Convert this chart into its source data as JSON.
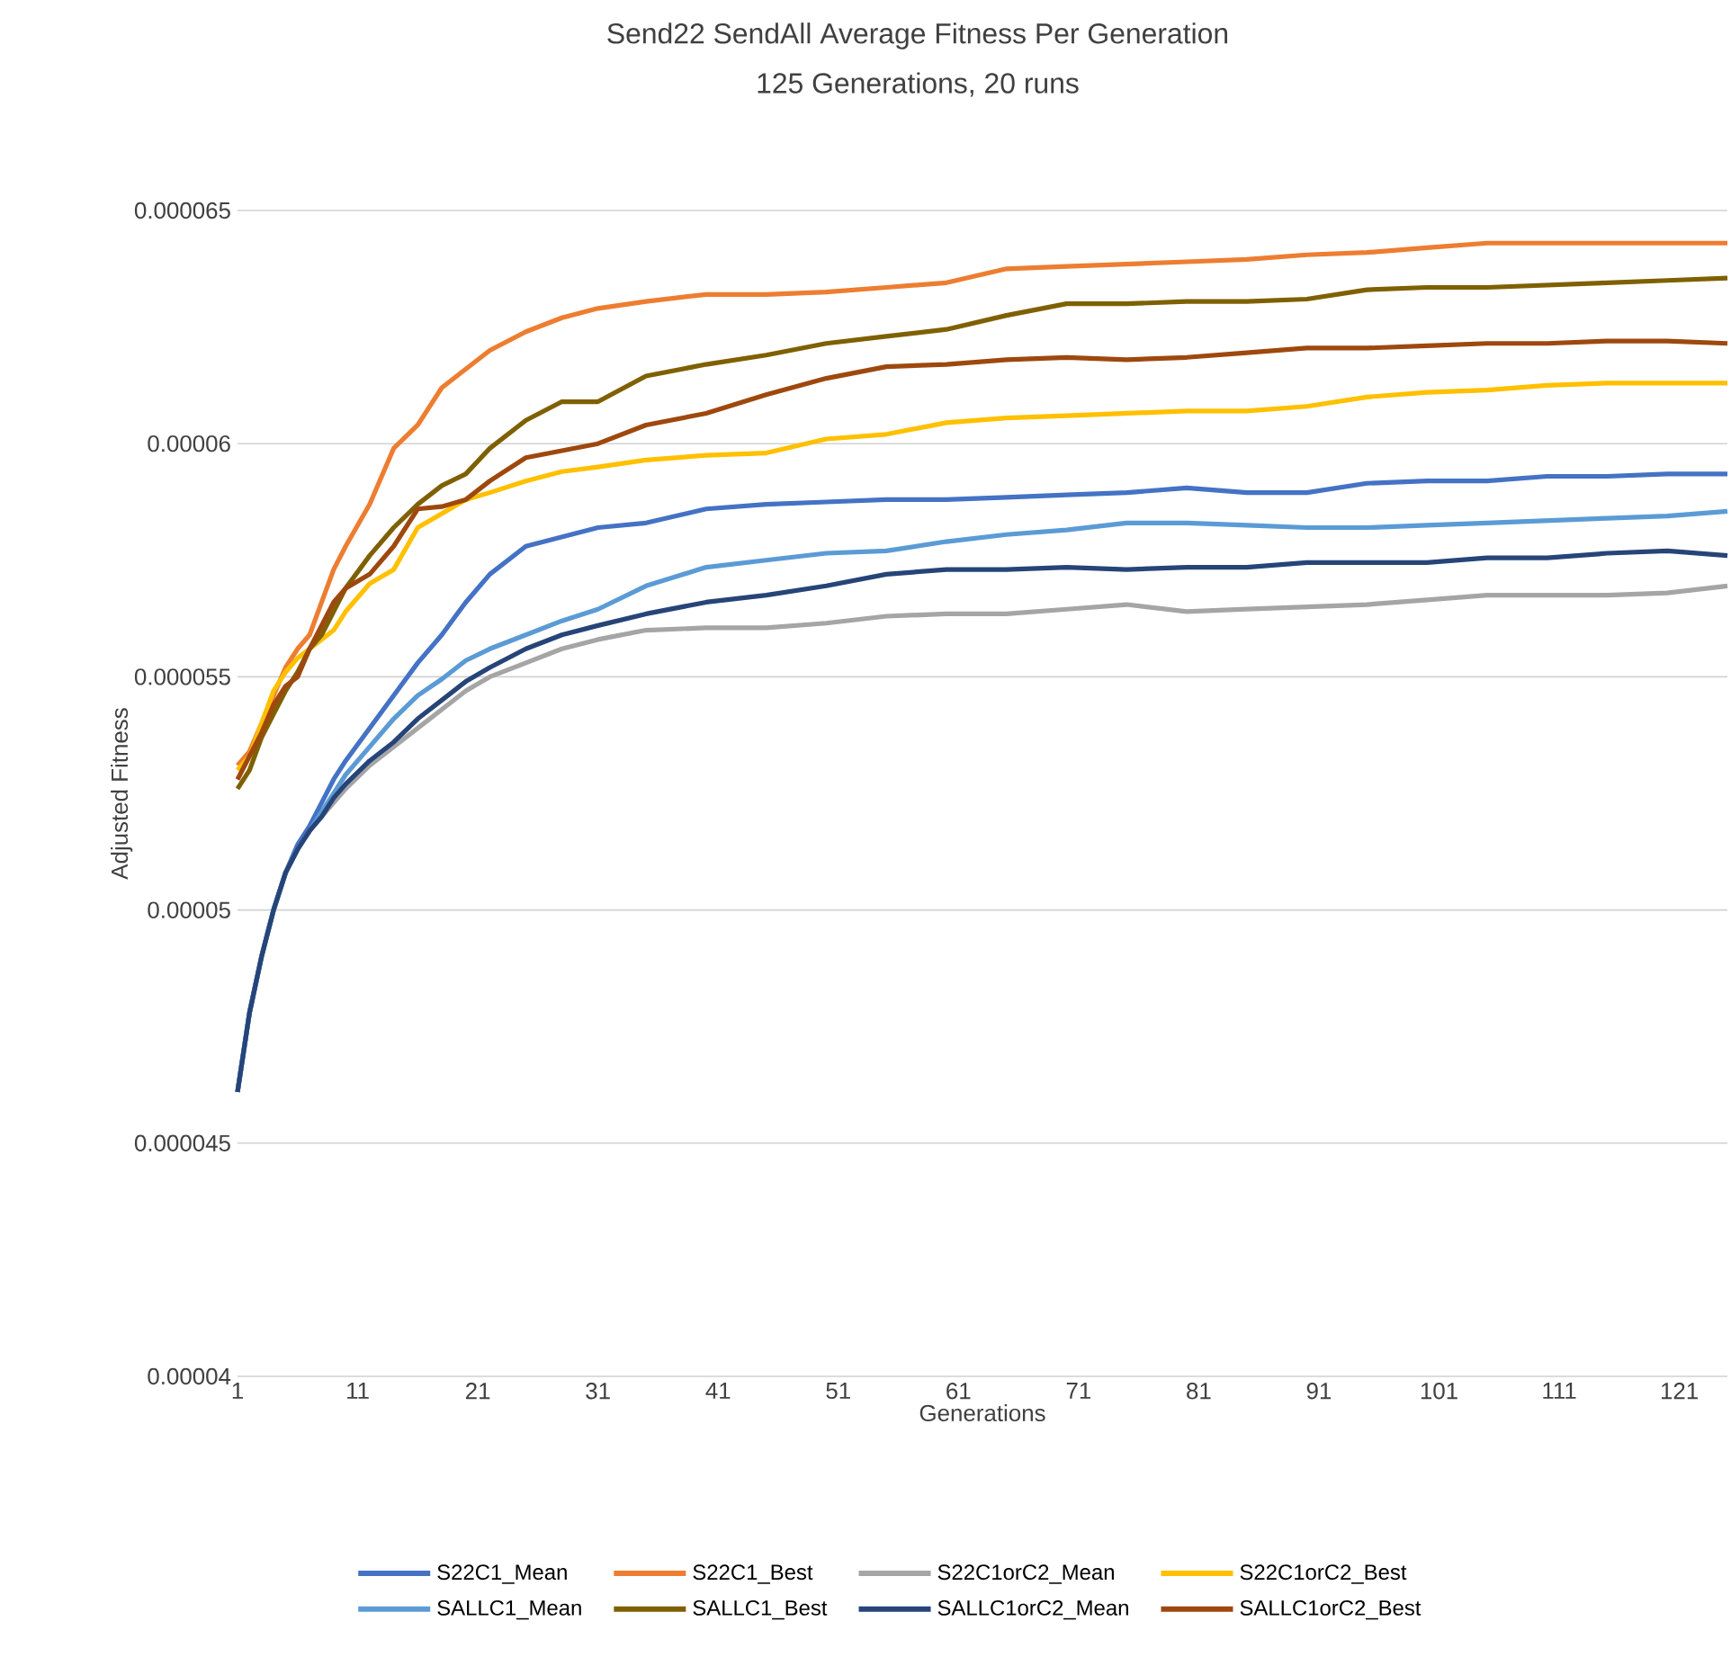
{
  "chart_data": {
    "type": "line",
    "title": "Send22 SendAll Average Fitness Per Generation",
    "subtitle": "125 Generations, 20 runs",
    "xlabel": "Generations",
    "ylabel": "Adjusted Fitness",
    "x": [
      1,
      2,
      3,
      4,
      5,
      6,
      7,
      8,
      9,
      10,
      12,
      14,
      16,
      18,
      20,
      22,
      25,
      28,
      31,
      35,
      40,
      45,
      50,
      55,
      60,
      65,
      70,
      75,
      80,
      85,
      90,
      95,
      100,
      105,
      110,
      115,
      120,
      125
    ],
    "xlim": [
      1,
      125
    ],
    "xticks": [
      1,
      11,
      21,
      31,
      41,
      51,
      61,
      71,
      81,
      91,
      101,
      111,
      121
    ],
    "ylim": [
      4e-05,
      6.5e-05
    ],
    "yticks": [
      {
        "value": 4e-05,
        "label": "0.00004"
      },
      {
        "value": 4.5e-05,
        "label": "0.000045"
      },
      {
        "value": 5e-05,
        "label": "0.00005"
      },
      {
        "value": 5.5e-05,
        "label": "0.000055"
      },
      {
        "value": 6e-05,
        "label": "0.00006"
      },
      {
        "value": 6.5e-05,
        "label": "0.000065"
      }
    ],
    "grid": "y",
    "legend": "bottom",
    "series": [
      {
        "name": "S22C1_Mean",
        "color": "#4472c4",
        "values": [
          4.61e-05,
          4.78e-05,
          4.9e-05,
          5e-05,
          5.08e-05,
          5.14e-05,
          5.18e-05,
          5.23e-05,
          5.28e-05,
          5.32e-05,
          5.39e-05,
          5.46e-05,
          5.53e-05,
          5.59e-05,
          5.66e-05,
          5.72e-05,
          5.78e-05,
          5.8e-05,
          5.82e-05,
          5.83e-05,
          5.86e-05,
          5.87e-05,
          5.875e-05,
          5.88e-05,
          5.88e-05,
          5.885e-05,
          5.89e-05,
          5.895e-05,
          5.905e-05,
          5.895e-05,
          5.895e-05,
          5.915e-05,
          5.92e-05,
          5.92e-05,
          5.93e-05,
          5.93e-05,
          5.935e-05,
          5.935e-05
        ]
      },
      {
        "name": "S22C1_Best",
        "color": "#ed7d31",
        "values": [
          5.31e-05,
          5.34e-05,
          5.4e-05,
          5.46e-05,
          5.52e-05,
          5.56e-05,
          5.59e-05,
          5.66e-05,
          5.73e-05,
          5.78e-05,
          5.87e-05,
          5.99e-05,
          6.04e-05,
          6.12e-05,
          6.16e-05,
          6.2e-05,
          6.24e-05,
          6.27e-05,
          6.29e-05,
          6.305e-05,
          6.32e-05,
          6.32e-05,
          6.325e-05,
          6.335e-05,
          6.345e-05,
          6.375e-05,
          6.38e-05,
          6.385e-05,
          6.39e-05,
          6.395e-05,
          6.405e-05,
          6.41e-05,
          6.42e-05,
          6.43e-05,
          6.43e-05,
          6.43e-05,
          6.43e-05,
          6.43e-05
        ]
      },
      {
        "name": "S22C1orC2_Mean",
        "color": "#a5a5a5",
        "values": [
          4.61e-05,
          4.78e-05,
          4.9e-05,
          5e-05,
          5.08e-05,
          5.13e-05,
          5.17e-05,
          5.2e-05,
          5.23e-05,
          5.26e-05,
          5.31e-05,
          5.35e-05,
          5.39e-05,
          5.43e-05,
          5.47e-05,
          5.5e-05,
          5.53e-05,
          5.56e-05,
          5.58e-05,
          5.6e-05,
          5.605e-05,
          5.605e-05,
          5.615e-05,
          5.63e-05,
          5.635e-05,
          5.635e-05,
          5.645e-05,
          5.655e-05,
          5.64e-05,
          5.645e-05,
          5.65e-05,
          5.655e-05,
          5.665e-05,
          5.675e-05,
          5.675e-05,
          5.675e-05,
          5.68e-05,
          5.695e-05
        ]
      },
      {
        "name": "S22C1orC2_Best",
        "color": "#ffc000",
        "values": [
          5.3e-05,
          5.33e-05,
          5.4e-05,
          5.47e-05,
          5.51e-05,
          5.54e-05,
          5.56e-05,
          5.58e-05,
          5.6e-05,
          5.64e-05,
          5.7e-05,
          5.73e-05,
          5.82e-05,
          5.85e-05,
          5.88e-05,
          5.895e-05,
          5.92e-05,
          5.94e-05,
          5.95e-05,
          5.965e-05,
          5.975e-05,
          5.98e-05,
          6.01e-05,
          6.02e-05,
          6.045e-05,
          6.055e-05,
          6.06e-05,
          6.065e-05,
          6.07e-05,
          6.07e-05,
          6.08e-05,
          6.1e-05,
          6.11e-05,
          6.115e-05,
          6.125e-05,
          6.13e-05,
          6.13e-05,
          6.13e-05
        ]
      },
      {
        "name": "SALLC1_Mean",
        "color": "#5b9bd5",
        "values": [
          4.61e-05,
          4.78e-05,
          4.9e-05,
          5e-05,
          5.08e-05,
          5.13e-05,
          5.17e-05,
          5.21e-05,
          5.25e-05,
          5.29e-05,
          5.35e-05,
          5.41e-05,
          5.46e-05,
          5.495e-05,
          5.535e-05,
          5.56e-05,
          5.59e-05,
          5.62e-05,
          5.645e-05,
          5.695e-05,
          5.735e-05,
          5.75e-05,
          5.765e-05,
          5.77e-05,
          5.79e-05,
          5.805e-05,
          5.815e-05,
          5.83e-05,
          5.83e-05,
          5.825e-05,
          5.82e-05,
          5.82e-05,
          5.825e-05,
          5.83e-05,
          5.835e-05,
          5.84e-05,
          5.845e-05,
          5.855e-05
        ]
      },
      {
        "name": "SALLC1_Best",
        "color": "#7f6000",
        "values": [
          5.26e-05,
          5.3e-05,
          5.37e-05,
          5.42e-05,
          5.47e-05,
          5.51e-05,
          5.56e-05,
          5.59e-05,
          5.64e-05,
          5.69e-05,
          5.76e-05,
          5.82e-05,
          5.87e-05,
          5.91e-05,
          5.935e-05,
          5.99e-05,
          6.05e-05,
          6.09e-05,
          6.09e-05,
          6.145e-05,
          6.17e-05,
          6.19e-05,
          6.215e-05,
          6.23e-05,
          6.245e-05,
          6.275e-05,
          6.3e-05,
          6.3e-05,
          6.305e-05,
          6.305e-05,
          6.31e-05,
          6.33e-05,
          6.335e-05,
          6.335e-05,
          6.34e-05,
          6.345e-05,
          6.35e-05,
          6.355e-05
        ]
      },
      {
        "name": "SALLC1orC2_Mean",
        "color": "#264478",
        "values": [
          4.61e-05,
          4.78e-05,
          4.9e-05,
          5e-05,
          5.08e-05,
          5.13e-05,
          5.17e-05,
          5.2e-05,
          5.24e-05,
          5.27e-05,
          5.32e-05,
          5.36e-05,
          5.41e-05,
          5.45e-05,
          5.49e-05,
          5.52e-05,
          5.56e-05,
          5.59e-05,
          5.61e-05,
          5.635e-05,
          5.66e-05,
          5.675e-05,
          5.695e-05,
          5.72e-05,
          5.73e-05,
          5.73e-05,
          5.735e-05,
          5.73e-05,
          5.735e-05,
          5.735e-05,
          5.745e-05,
          5.745e-05,
          5.745e-05,
          5.755e-05,
          5.755e-05,
          5.765e-05,
          5.77e-05,
          5.76e-05
        ]
      },
      {
        "name": "SALLC1orC2_Best",
        "color": "#9e480e",
        "values": [
          5.28e-05,
          5.33e-05,
          5.38e-05,
          5.44e-05,
          5.48e-05,
          5.5e-05,
          5.56e-05,
          5.61e-05,
          5.66e-05,
          5.69e-05,
          5.72e-05,
          5.78e-05,
          5.86e-05,
          5.865e-05,
          5.88e-05,
          5.92e-05,
          5.97e-05,
          5.985e-05,
          6e-05,
          6.04e-05,
          6.065e-05,
          6.105e-05,
          6.14e-05,
          6.165e-05,
          6.17e-05,
          6.18e-05,
          6.185e-05,
          6.18e-05,
          6.185e-05,
          6.195e-05,
          6.205e-05,
          6.205e-05,
          6.21e-05,
          6.215e-05,
          6.215e-05,
          6.22e-05,
          6.22e-05,
          6.215e-05
        ]
      }
    ]
  }
}
